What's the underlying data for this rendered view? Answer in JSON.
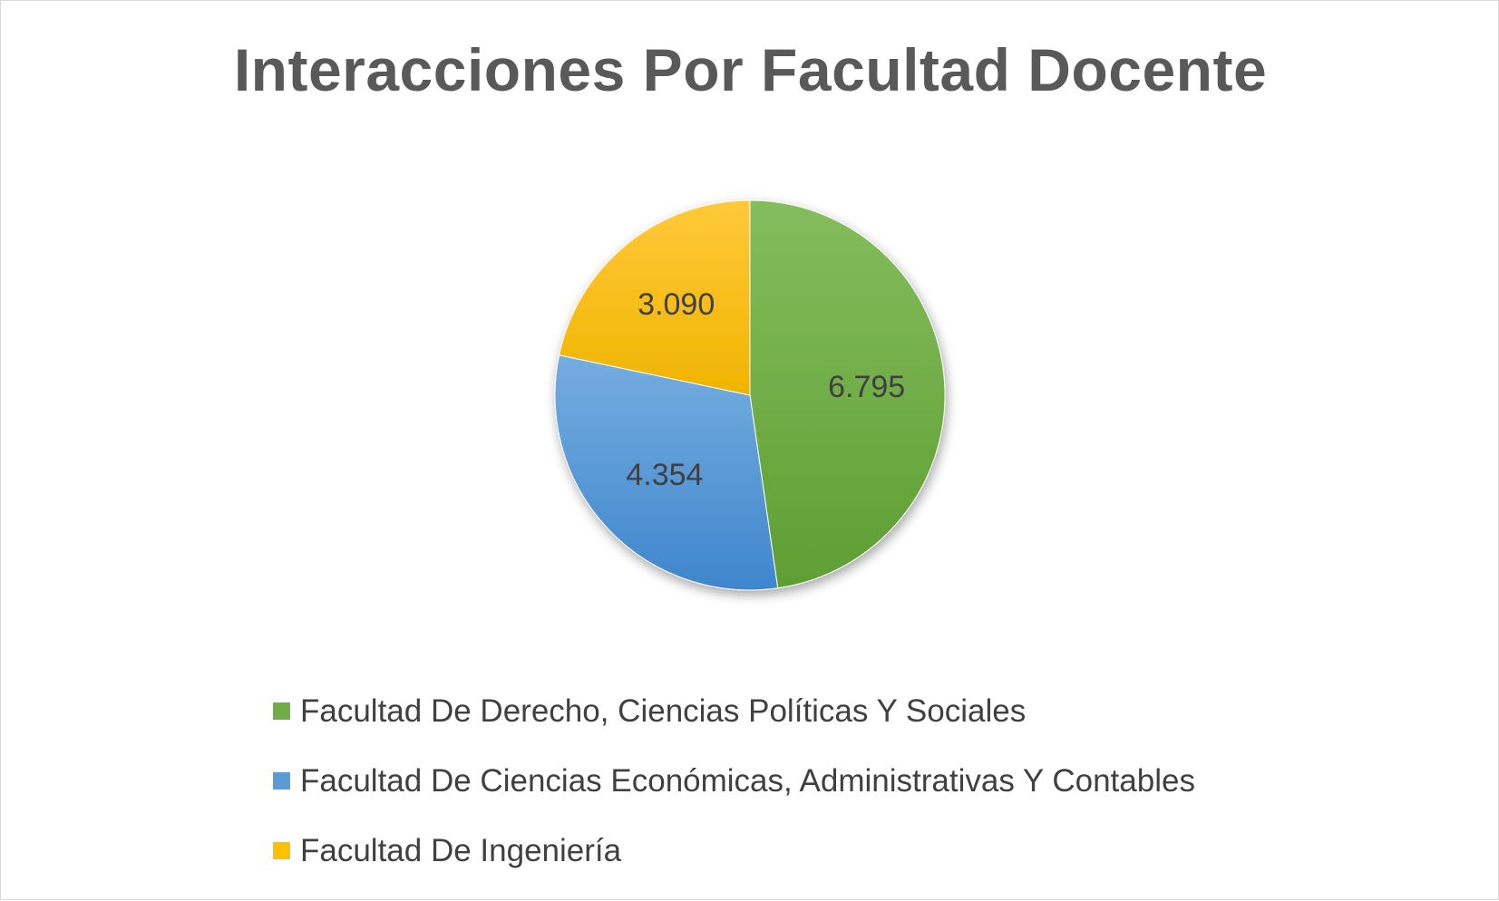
{
  "chart_data": {
    "type": "pie",
    "title": "Interacciones Por Facultad Docente",
    "categories": [
      "Facultad De Derecho, Ciencias Políticas Y Sociales",
      "Facultad De Ciencias Económicas, Administrativas Y Contables",
      "Facultad De Ingeniería"
    ],
    "values": [
      6795,
      4354,
      3090
    ],
    "data_labels": [
      "6.795",
      "4.354",
      "3.090"
    ],
    "colors": [
      "#70ad47",
      "#5b9bd5",
      "#ffc000"
    ],
    "legend_position": "bottom-left",
    "start_angle_deg": 0,
    "direction": "clockwise"
  }
}
